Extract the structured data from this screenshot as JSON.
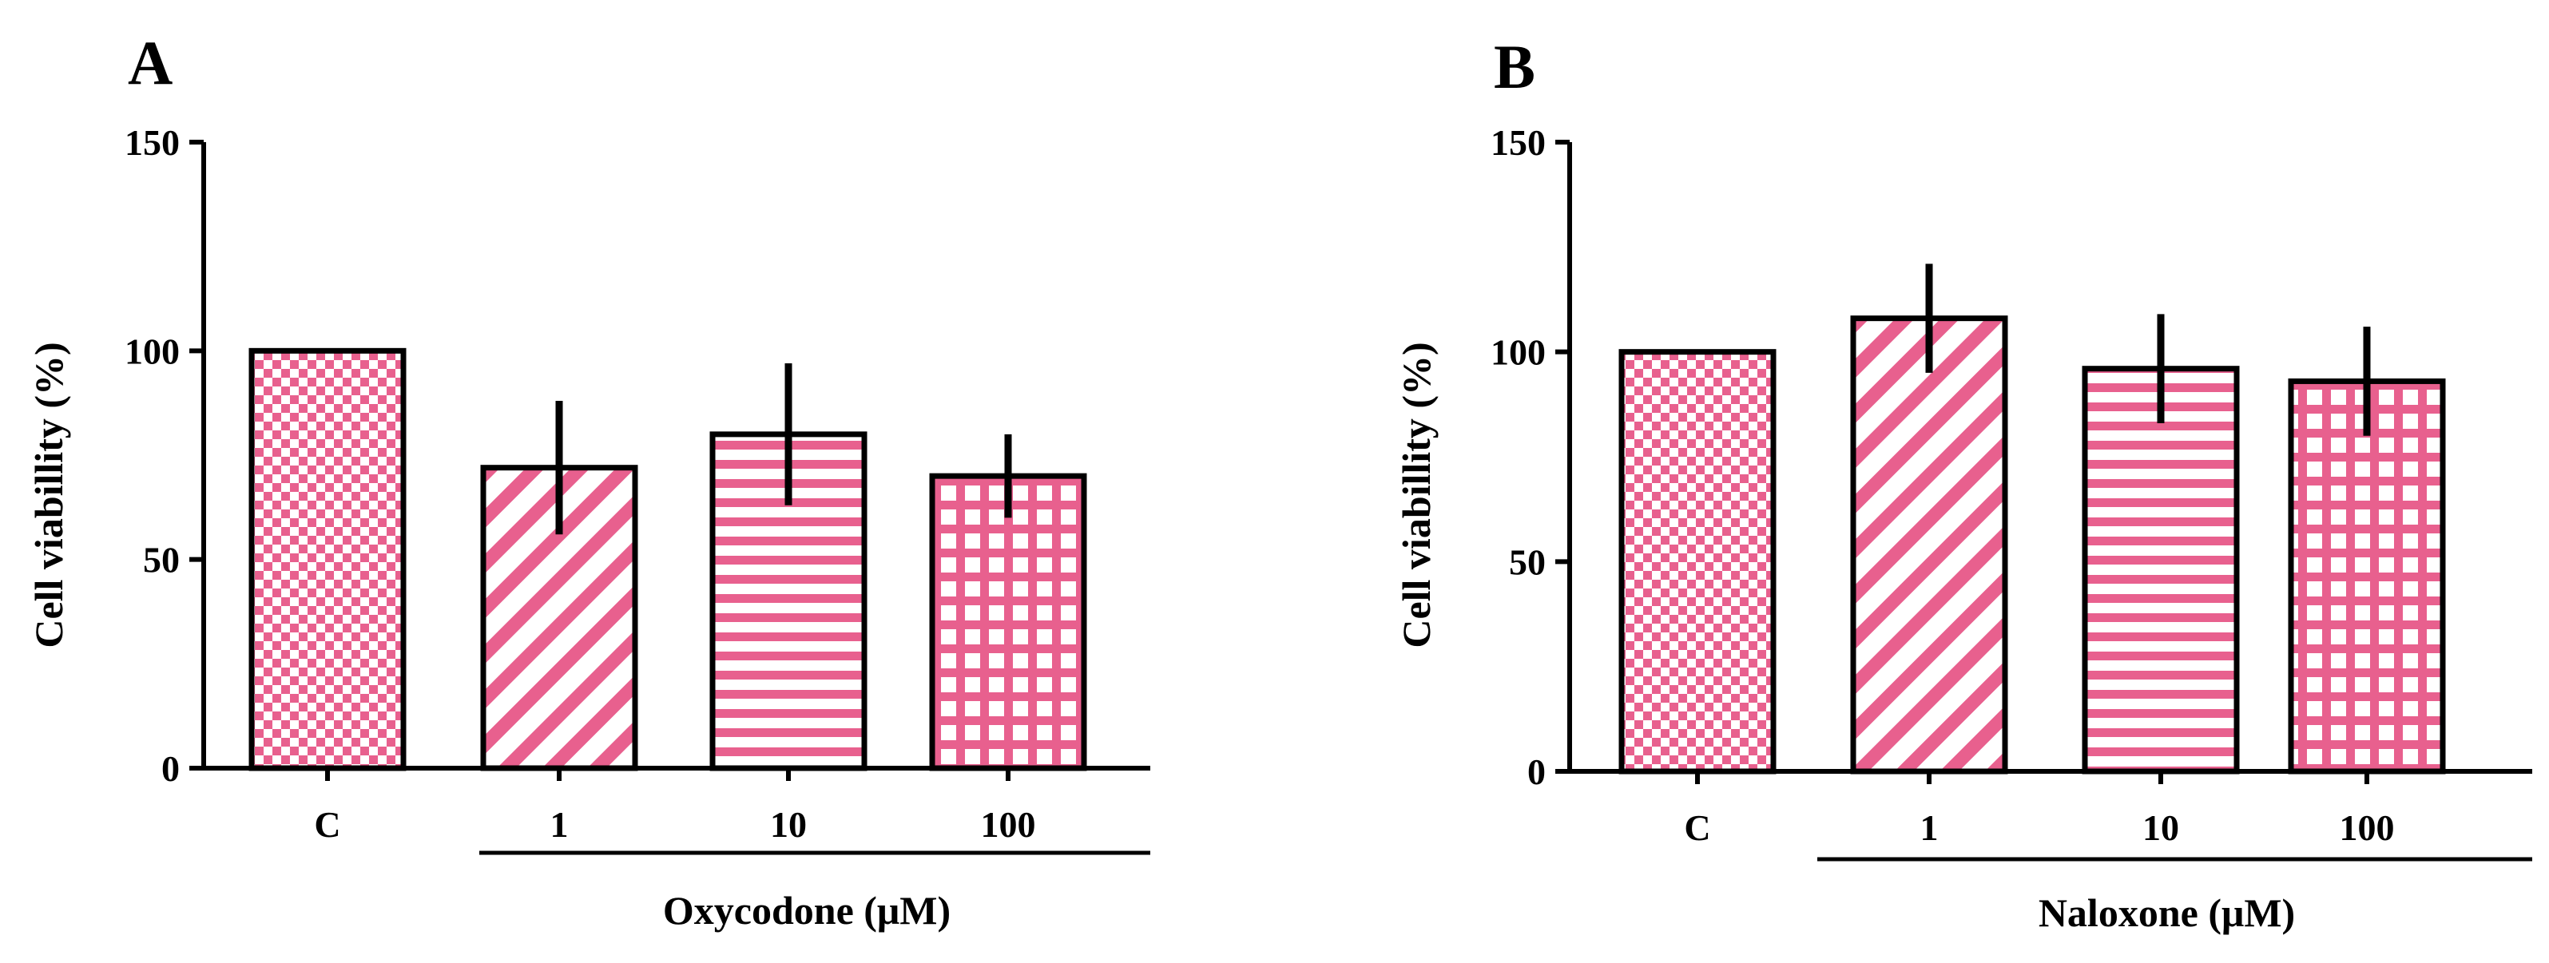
{
  "colors": {
    "bar_pattern": "#e8608e",
    "axis": "#000000",
    "background": "#ffffff"
  },
  "chart_data": [
    {
      "type": "bar",
      "panel_label": "A",
      "title": "",
      "categories": [
        "C",
        "1",
        "10",
        "100"
      ],
      "values": [
        100,
        72,
        80,
        70
      ],
      "errors": [
        0,
        16,
        17,
        10
      ],
      "patterns": [
        "checker",
        "diagonal",
        "horizontal",
        "grid"
      ],
      "xlabel": "",
      "ylabel": "Cell viabillity (%)",
      "group_label": "Oxycodone (μM)",
      "yticks": [
        "0",
        "50",
        "100",
        "150"
      ],
      "ylim": [
        0,
        150
      ]
    },
    {
      "type": "bar",
      "panel_label": "B",
      "title": "",
      "categories": [
        "C",
        "1",
        "10",
        "100"
      ],
      "values": [
        100,
        108,
        96,
        93
      ],
      "errors": [
        0,
        13,
        13,
        13
      ],
      "patterns": [
        "checker",
        "diagonal",
        "horizontal",
        "grid"
      ],
      "xlabel": "",
      "ylabel": "Cell viabillity (%)",
      "group_label": "Naloxone (μM)",
      "yticks": [
        "0",
        "50",
        "100",
        "150"
      ],
      "ylim": [
        0,
        150
      ]
    }
  ]
}
